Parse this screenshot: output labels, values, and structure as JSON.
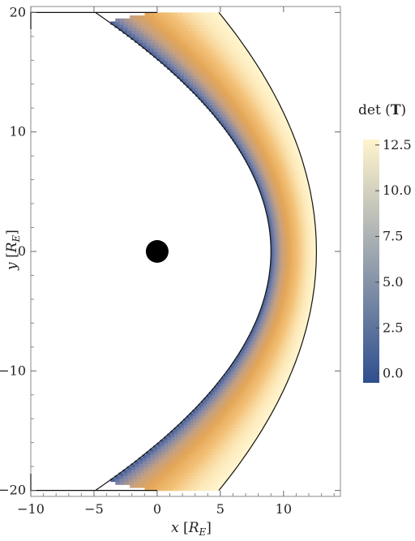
{
  "chart_data": {
    "type": "heatmap",
    "title": "",
    "xlabel": "x [R_E]",
    "ylabel": "y [R_E]",
    "xlim": [
      -10,
      14.5
    ],
    "ylim": [
      -20.5,
      20.5
    ],
    "x_ticks": [
      -10,
      -5,
      0,
      5,
      10
    ],
    "x_tick_labels": [
      "−10",
      "−5",
      "0",
      "5",
      "10"
    ],
    "y_ticks": [
      -20,
      -10,
      0,
      10,
      20
    ],
    "y_tick_labels": [
      "−20",
      "−10",
      "0",
      "10",
      "20"
    ],
    "region": {
      "description_shape": "paraboloid shell",
      "inner_boundary": {
        "nose_x": 9.0,
        "flank_param": 14.4
      },
      "outer_boundary": {
        "nose_x": 12.6,
        "flank_param": 25.9
      },
      "x_min": -10,
      "y_range": [
        -20,
        20
      ],
      "corner_x_at_y20": 0
    },
    "planet": {
      "x": 0,
      "y": 0,
      "radius": 0.9
    },
    "colorbar": {
      "title": "det (T)",
      "min": -0.5,
      "max": 12.8,
      "ticks": [
        0.0,
        2.5,
        5.0,
        7.5,
        10.0,
        12.5
      ],
      "tick_labels": [
        "0.0",
        "2.5",
        "5.0",
        "7.5",
        "10.0",
        "12.5"
      ],
      "colors": [
        "#2f4f8f",
        "#7f86a8",
        "#c4a083",
        "#e4a657",
        "#f3c178",
        "#fff4cc"
      ]
    }
  }
}
